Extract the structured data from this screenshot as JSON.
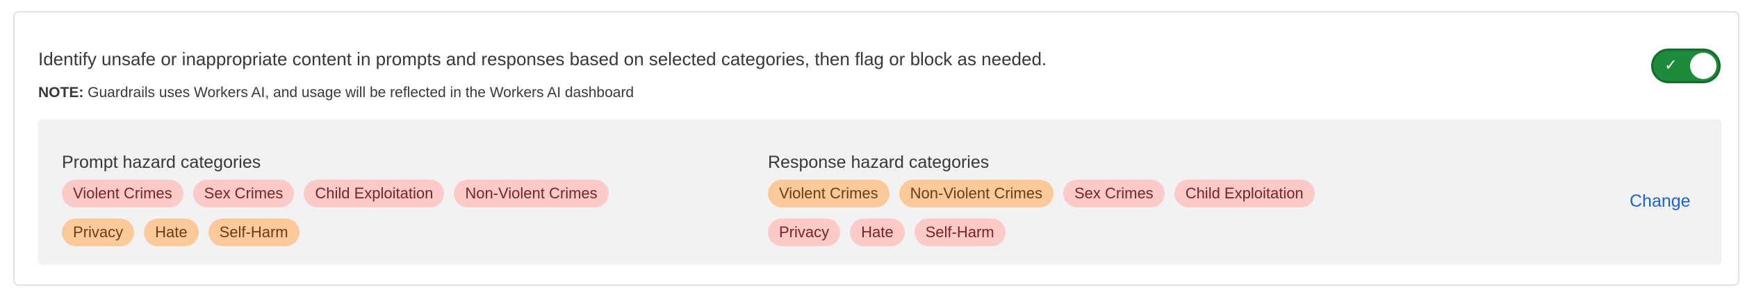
{
  "description": "Identify unsafe or inappropriate content in prompts and responses based on selected categories, then flag or block as needed.",
  "note": {
    "label": "NOTE:",
    "text": " Guardrails uses Workers AI, and usage will be reflected in the Workers AI dashboard"
  },
  "toggle": {
    "enabled": true,
    "icon": "check-icon",
    "color": "#1e8a3c",
    "check": "✓"
  },
  "prompt": {
    "title": "Prompt hazard categories",
    "rows": [
      [
        {
          "label": "Violent Crimes",
          "tone": "red"
        },
        {
          "label": "Sex Crimes",
          "tone": "red"
        },
        {
          "label": "Child Exploitation",
          "tone": "red"
        },
        {
          "label": "Non-Violent Crimes",
          "tone": "red"
        }
      ],
      [
        {
          "label": "Privacy",
          "tone": "orange"
        },
        {
          "label": "Hate",
          "tone": "orange"
        },
        {
          "label": "Self-Harm",
          "tone": "orange"
        }
      ]
    ]
  },
  "response": {
    "title": "Response hazard categories",
    "rows": [
      [
        {
          "label": "Violent Crimes",
          "tone": "orange"
        },
        {
          "label": "Non-Violent Crimes",
          "tone": "orange"
        },
        {
          "label": "Sex Crimes",
          "tone": "red"
        },
        {
          "label": "Child Exploitation",
          "tone": "red"
        }
      ],
      [
        {
          "label": "Privacy",
          "tone": "red"
        },
        {
          "label": "Hate",
          "tone": "red"
        },
        {
          "label": "Self-Harm",
          "tone": "red"
        }
      ]
    ]
  },
  "change_label": "Change",
  "colors": {
    "red_bg": "#fdcaca",
    "orange_bg": "#fcc99a",
    "link": "#1f62d1"
  }
}
